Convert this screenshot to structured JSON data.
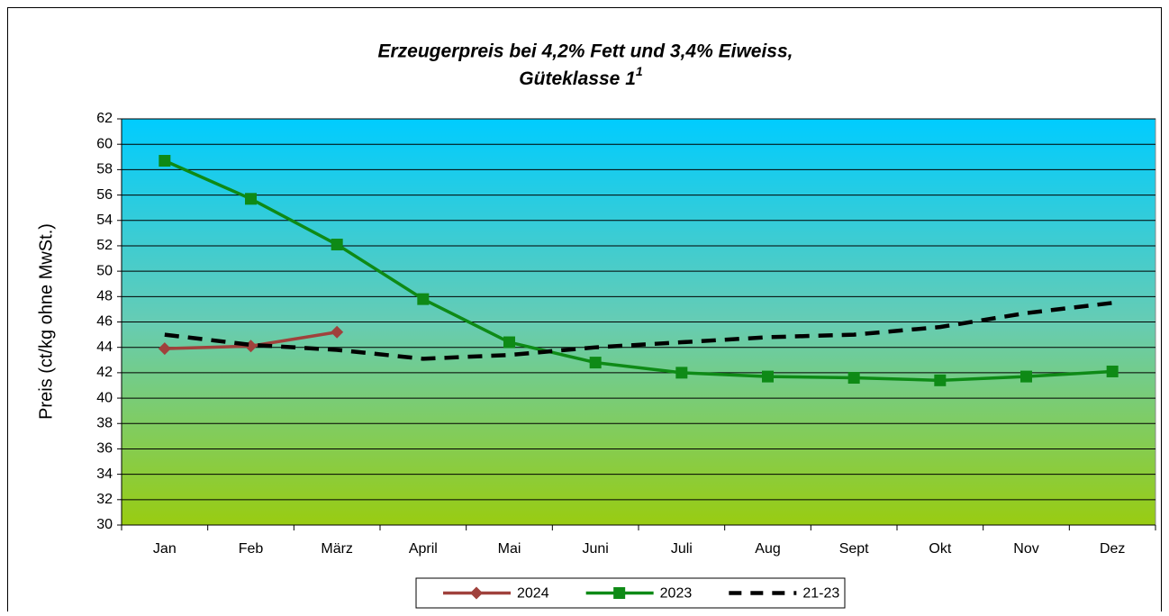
{
  "chart_data": {
    "type": "line",
    "title_lines": [
      "Erzeugerpreis bei 4,2% Fett und 3,4% Eiweiss,",
      "Güteklasse 1"
    ],
    "title_superscript": "1",
    "y_label": "Preis (ct/kg ohne MwSt.)",
    "categories": [
      "Jan",
      "Feb",
      "März",
      "April",
      "Mai",
      "Juni",
      "Juli",
      "Aug",
      "Sept",
      "Okt",
      "Nov",
      "Dez"
    ],
    "series": [
      {
        "name": "2024",
        "color": "#a0413c",
        "marker": "diamond",
        "dashed": false,
        "values": [
          43.9,
          44.1,
          45.2,
          null,
          null,
          null,
          null,
          null,
          null,
          null,
          null,
          null
        ]
      },
      {
        "name": "2023",
        "color": "#0e8a16",
        "marker": "square",
        "dashed": false,
        "values": [
          58.7,
          55.7,
          52.1,
          47.8,
          44.4,
          42.8,
          42.0,
          41.7,
          41.6,
          41.4,
          41.7,
          42.1
        ]
      },
      {
        "name": "21-23",
        "color": "#000000",
        "marker": "none",
        "dashed": true,
        "values": [
          45.0,
          44.2,
          43.8,
          43.1,
          43.4,
          44.0,
          44.4,
          44.8,
          45.0,
          45.6,
          46.7,
          47.5
        ]
      }
    ],
    "ylim": [
      30,
      62
    ],
    "yticks": [
      30,
      32,
      34,
      36,
      38,
      40,
      42,
      44,
      46,
      48,
      50,
      52,
      54,
      56,
      58,
      60,
      62
    ],
    "grid": true,
    "legend": "bottom"
  }
}
